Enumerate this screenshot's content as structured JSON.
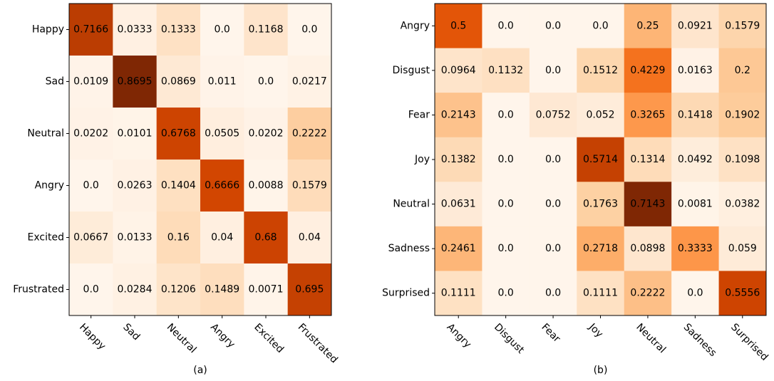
{
  "chart_data": [
    {
      "type": "heatmap",
      "colormap": "Oranges",
      "xlabel": "(a)",
      "x_categories": [
        "Happy",
        "Sad",
        "Neutral",
        "Angry",
        "Excited",
        "Frustrated"
      ],
      "y_categories": [
        "Happy",
        "Sad",
        "Neutral",
        "Angry",
        "Excited",
        "Frustrated"
      ],
      "values": [
        [
          0.7166,
          0.0333,
          0.1333,
          0.0,
          0.1168,
          0.0
        ],
        [
          0.0109,
          0.8695,
          0.0869,
          0.011,
          0.0,
          0.0217
        ],
        [
          0.0202,
          0.0101,
          0.6768,
          0.0505,
          0.0202,
          0.2222
        ],
        [
          0.0,
          0.0263,
          0.1404,
          0.6666,
          0.0088,
          0.1579
        ],
        [
          0.0667,
          0.0133,
          0.16,
          0.04,
          0.68,
          0.04
        ],
        [
          0.0,
          0.0284,
          0.1206,
          0.1489,
          0.0071,
          0.695
        ]
      ],
      "value_labels": [
        [
          "0.7166",
          "0.0333",
          "0.1333",
          "0.0",
          "0.1168",
          "0.0"
        ],
        [
          "0.0109",
          "0.8695",
          "0.0869",
          "0.011",
          "0.0",
          "0.0217"
        ],
        [
          "0.0202",
          "0.0101",
          "0.6768",
          "0.0505",
          "0.0202",
          "0.2222"
        ],
        [
          "0.0",
          "0.0263",
          "0.1404",
          "0.6666",
          "0.0088",
          "0.1579"
        ],
        [
          "0.0667",
          "0.0133",
          "0.16",
          "0.04",
          "0.68",
          "0.04"
        ],
        [
          "0.0",
          "0.0284",
          "0.1206",
          "0.1489",
          "0.0071",
          "0.695"
        ]
      ]
    },
    {
      "type": "heatmap",
      "colormap": "Oranges",
      "xlabel": "(b)",
      "x_categories": [
        "Angry",
        "Disgust",
        "Fear",
        "Joy",
        "Neutral",
        "Sadness",
        "Surprised"
      ],
      "y_categories": [
        "Angry",
        "Disgust",
        "Fear",
        "Joy",
        "Neutral",
        "Sadness",
        "Surprised"
      ],
      "values": [
        [
          0.5,
          0.0,
          0.0,
          0.0,
          0.25,
          0.0921,
          0.1579
        ],
        [
          0.0964,
          0.1132,
          0.0,
          0.1512,
          0.4229,
          0.0163,
          0.2
        ],
        [
          0.2143,
          0.0,
          0.0752,
          0.052,
          0.3265,
          0.1418,
          0.1902
        ],
        [
          0.1382,
          0.0,
          0.0,
          0.5714,
          0.1314,
          0.0492,
          0.1098
        ],
        [
          0.0631,
          0.0,
          0.0,
          0.1763,
          0.7143,
          0.0081,
          0.0382
        ],
        [
          0.2461,
          0.0,
          0.0,
          0.2718,
          0.0898,
          0.3333,
          0.059
        ],
        [
          0.1111,
          0.0,
          0.0,
          0.1111,
          0.2222,
          0.0,
          0.5556
        ]
      ],
      "value_labels": [
        [
          "0.5",
          "0.0",
          "0.0",
          "0.0",
          "0.25",
          "0.0921",
          "0.1579"
        ],
        [
          "0.0964",
          "0.1132",
          "0.0",
          "0.1512",
          "0.4229",
          "0.0163",
          "0.2"
        ],
        [
          "0.2143",
          "0.0",
          "0.0752",
          "0.052",
          "0.3265",
          "0.1418",
          "0.1902"
        ],
        [
          "0.1382",
          "0.0",
          "0.0",
          "0.5714",
          "0.1314",
          "0.0492",
          "0.1098"
        ],
        [
          "0.0631",
          "0.0",
          "0.0",
          "0.1763",
          "0.7143",
          "0.0081",
          "0.0382"
        ],
        [
          "0.2461",
          "0.0",
          "0.0",
          "0.2718",
          "0.0898",
          "0.3333",
          "0.059"
        ],
        [
          "0.1111",
          "0.0",
          "0.0",
          "0.1111",
          "0.2222",
          "0.0",
          "0.5556"
        ]
      ]
    }
  ]
}
